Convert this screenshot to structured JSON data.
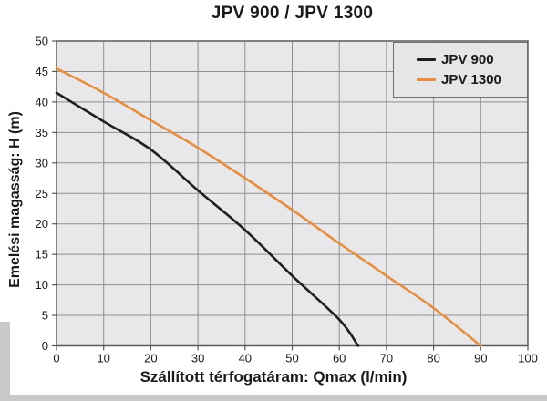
{
  "chart_data": {
    "type": "line",
    "title": "JPV 900 / JPV 1300",
    "xlabel": "Szállított térfogatáram: Qmax (l/min)",
    "ylabel": "Emelési magasság: H (m)",
    "xlim": [
      0,
      100
    ],
    "ylim": [
      0,
      50
    ],
    "xticks": [
      0,
      10,
      20,
      30,
      40,
      50,
      60,
      70,
      80,
      90,
      100
    ],
    "yticks": [
      0,
      5,
      10,
      15,
      20,
      25,
      30,
      35,
      40,
      45,
      50
    ],
    "grid": true,
    "legend": {
      "position": "top-right"
    },
    "series": [
      {
        "name": "JPV 900",
        "color": "#1f1f1f",
        "points": [
          [
            0,
            41.5
          ],
          [
            10,
            36.8
          ],
          [
            20,
            32.2
          ],
          [
            30,
            25.5
          ],
          [
            40,
            19.0
          ],
          [
            50,
            11.5
          ],
          [
            60,
            4.3
          ],
          [
            64,
            0
          ]
        ]
      },
      {
        "name": "JPV 1300",
        "color": "#e58e3e",
        "points": [
          [
            0,
            45.5
          ],
          [
            10,
            41.5
          ],
          [
            20,
            37.0
          ],
          [
            30,
            32.5
          ],
          [
            40,
            27.5
          ],
          [
            50,
            22.3
          ],
          [
            60,
            16.8
          ],
          [
            70,
            11.5
          ],
          [
            80,
            6.2
          ],
          [
            90,
            0
          ]
        ]
      }
    ],
    "colors": {
      "plot_bg": "#e8e8ea",
      "grid": "#8f8f8f",
      "border": "#5a5a5a",
      "text": "#1a1a1a",
      "legend_bg": "#e6e6e8",
      "legend_border": "#707070"
    }
  }
}
